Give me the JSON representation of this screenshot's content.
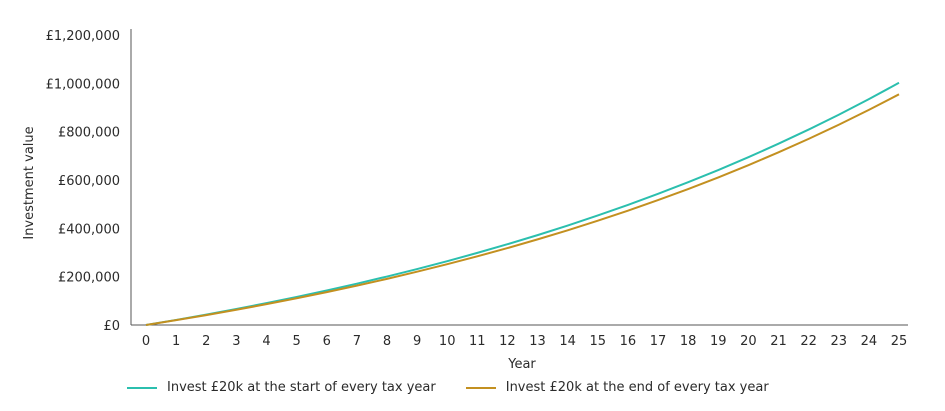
{
  "chart_data": {
    "type": "line",
    "xlabel": "Year",
    "ylabel": "Investment value",
    "x": [
      0,
      1,
      2,
      3,
      4,
      5,
      6,
      7,
      8,
      9,
      10,
      11,
      12,
      13,
      14,
      15,
      16,
      17,
      18,
      19,
      20,
      21,
      22,
      23,
      24,
      25
    ],
    "xlim": [
      0,
      25
    ],
    "ylim": [
      0,
      1200000
    ],
    "yticks": [
      0,
      200000,
      400000,
      600000,
      800000,
      1000000,
      1200000
    ],
    "ytick_labels": [
      "£0",
      "£200,000",
      "£400,000",
      "£600,000",
      "£800,000",
      "£1,000,000",
      "£1,200,000"
    ],
    "grid": false,
    "legend_position": "bottom-left",
    "series": [
      {
        "name": "Invest £20k at the start of every tax year",
        "color": "#2bbfae",
        "values": [
          0,
          21000,
          43050,
          66203,
          90513,
          116038,
          142840,
          170982,
          200531,
          231558,
          264136,
          298342,
          334259,
          371972,
          411571,
          453150,
          496807,
          542648,
          590780,
          641319,
          694385,
          750104,
          808609,
          870040,
          934542,
          1002269
        ]
      },
      {
        "name": "Invest £20k at the end of every tax year",
        "color": "#c39020",
        "values": [
          0,
          20000,
          41000,
          63050,
          86203,
          110513,
          136038,
          162840,
          190982,
          220531,
          251558,
          284136,
          318342,
          354259,
          391972,
          431571,
          473150,
          516807,
          562648,
          610780,
          661319,
          714385,
          770104,
          828609,
          890040,
          954542
        ]
      }
    ]
  }
}
